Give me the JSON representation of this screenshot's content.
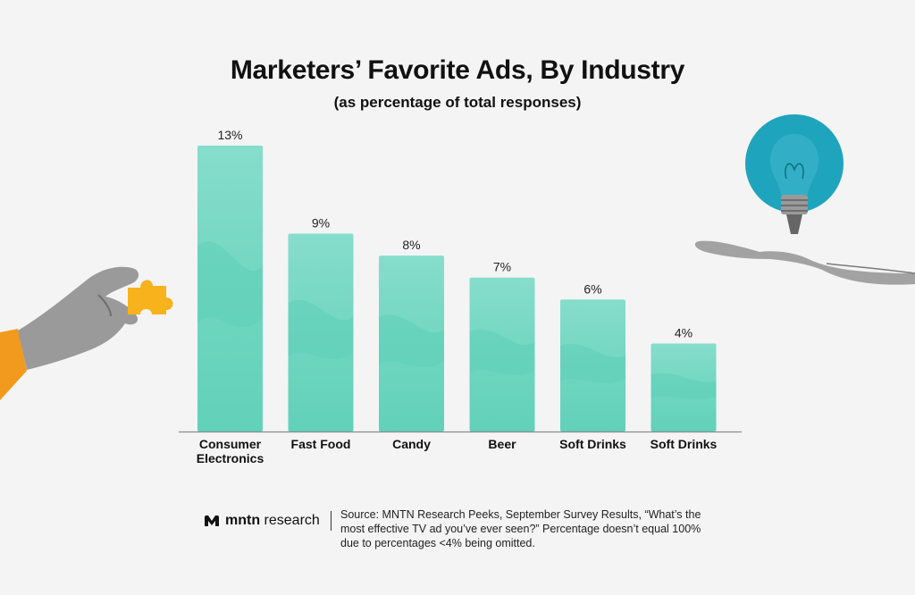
{
  "chart_data": {
    "type": "bar",
    "title": "Marketers’ Favorite Ads, By Industry",
    "subtitle": "(as percentage of total responses)",
    "categories": [
      [
        "Consumer",
        "Electronics"
      ],
      [
        "Fast Food"
      ],
      [
        "Candy"
      ],
      [
        "Beer"
      ],
      [
        "Soft Drinks"
      ],
      [
        "Soft Drinks"
      ]
    ],
    "values": [
      13,
      9,
      8,
      7,
      6,
      4
    ],
    "value_labels": [
      "13%",
      "9%",
      "8%",
      "7%",
      "6%",
      "4%"
    ],
    "unit": "%",
    "ylim": [
      0,
      13
    ],
    "grid": false,
    "legend": "none",
    "colors": {
      "bar": "#7fdcc8",
      "bar_dark": "#5ccfb6",
      "axis": "#8a8a8a"
    }
  },
  "footer": {
    "logo_text_brand": "mntn",
    "logo_text_rest": " research",
    "source": "Source: MNTN Research Peeks, September Survey Results, “What’s the most effective TV ad you’ve ever seen?” Percentage doesn’t equal 100% due to percentages <4% being omitted."
  },
  "decorations": {
    "left": "hand-holding-puzzle-piece-icon",
    "right": "open-hand-with-lightbulb-icon",
    "colors": {
      "puzzle": "#f7b21c",
      "sleeve": "#f29a1d",
      "bulb_circle": "#1fa4bd"
    }
  }
}
